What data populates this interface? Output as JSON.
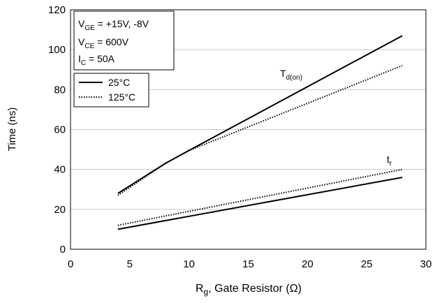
{
  "chart_data": {
    "type": "line",
    "xlabel": {
      "main": "R",
      "sub": "g",
      "rest": ", Gate Resistor (Ω)"
    },
    "ylabel": "Time  (ns)",
    "xlim": [
      0,
      30
    ],
    "ylim": [
      0,
      120
    ],
    "x_ticks": [
      "0",
      "5",
      "10",
      "15",
      "20",
      "25",
      "30"
    ],
    "y_ticks": [
      "0",
      "20",
      "40",
      "60",
      "80",
      "100",
      "120"
    ],
    "grid": "horizontal",
    "conditions": [
      {
        "main": "V",
        "sub": "GE",
        "rest": " = +15V, -8V"
      },
      {
        "main": "V",
        "sub": "CE",
        "rest": " = 600V"
      },
      {
        "main": "I",
        "sub": "C",
        "rest": " = 50A"
      }
    ],
    "legend": {
      "placement": "top-left",
      "entries": [
        {
          "label": "25°C",
          "style": "solid"
        },
        {
          "label": "125°C",
          "style": "dotted"
        }
      ]
    },
    "curve_labels": [
      {
        "main": "T",
        "sub": "d(on)"
      },
      {
        "main": "t",
        "sub": "r"
      }
    ],
    "series": [
      {
        "curve": "T_d(on)",
        "temp": "25°C",
        "style": "solid",
        "x": [
          4,
          8,
          10,
          28
        ],
        "y": [
          28,
          43,
          49.5,
          107
        ]
      },
      {
        "curve": "T_d(on)",
        "temp": "125°C",
        "style": "dotted",
        "x": [
          4,
          8,
          10,
          28
        ],
        "y": [
          27,
          43,
          49.5,
          92
        ]
      },
      {
        "curve": "t_r",
        "temp": "25°C",
        "style": "solid",
        "x": [
          4,
          28
        ],
        "y": [
          10,
          36
        ]
      },
      {
        "curve": "t_r",
        "temp": "125°C",
        "style": "dotted",
        "x": [
          4,
          28
        ],
        "y": [
          12,
          40
        ]
      }
    ],
    "line_color": "#000000",
    "grid_color": "#c8c8c8"
  }
}
